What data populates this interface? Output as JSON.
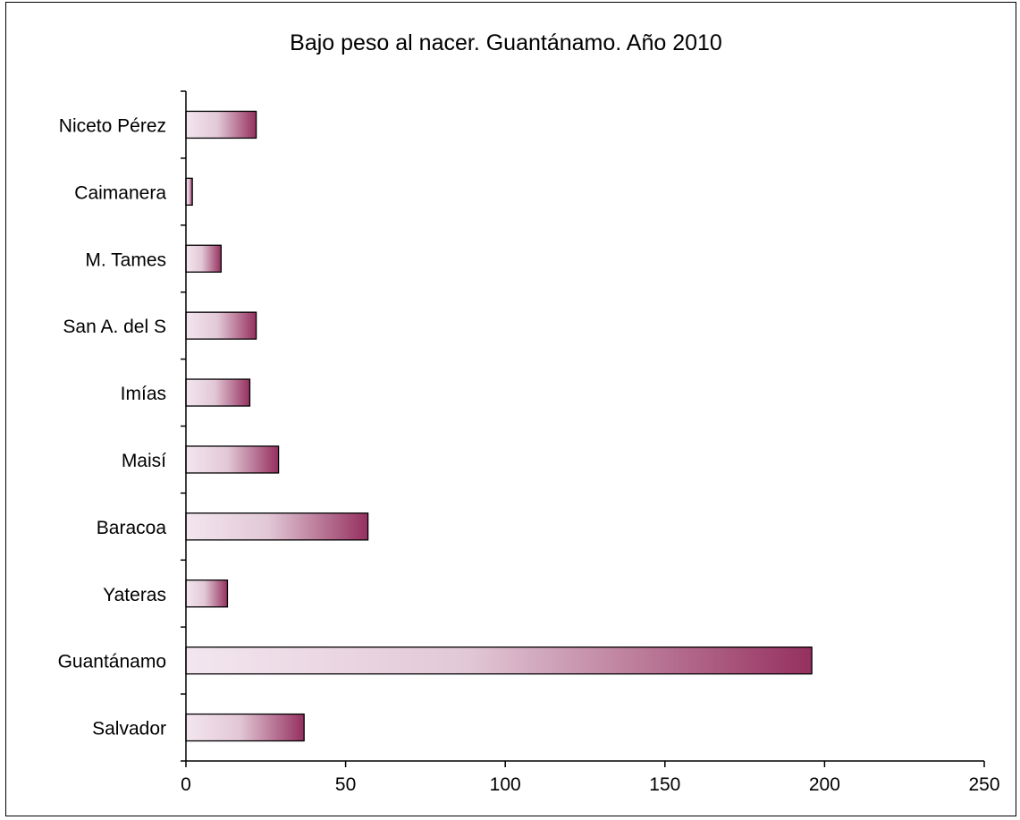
{
  "chart_data": {
    "type": "bar",
    "orientation": "horizontal",
    "title": "Bajo peso al nacer. Guantánamo. Año 2010",
    "xlabel": "",
    "ylabel": "",
    "categories": [
      "Salvador",
      "Guantánamo",
      "Yateras",
      "Baracoa",
      "Maisí",
      "Imías",
      "San A. del S",
      "M. Tames",
      "Caimanera",
      "Niceto Pérez"
    ],
    "values": [
      37,
      196,
      13,
      57,
      29,
      20,
      22,
      11,
      2,
      22
    ],
    "xlim": [
      0,
      250
    ],
    "xticks": [
      "0",
      "50",
      "100",
      "150",
      "200",
      "250"
    ],
    "grid": false,
    "legend": "none",
    "bar_gradient": [
      "#f3e6ef",
      "#e2c8d6",
      "#95305f"
    ],
    "bar_outline": "#000000"
  }
}
